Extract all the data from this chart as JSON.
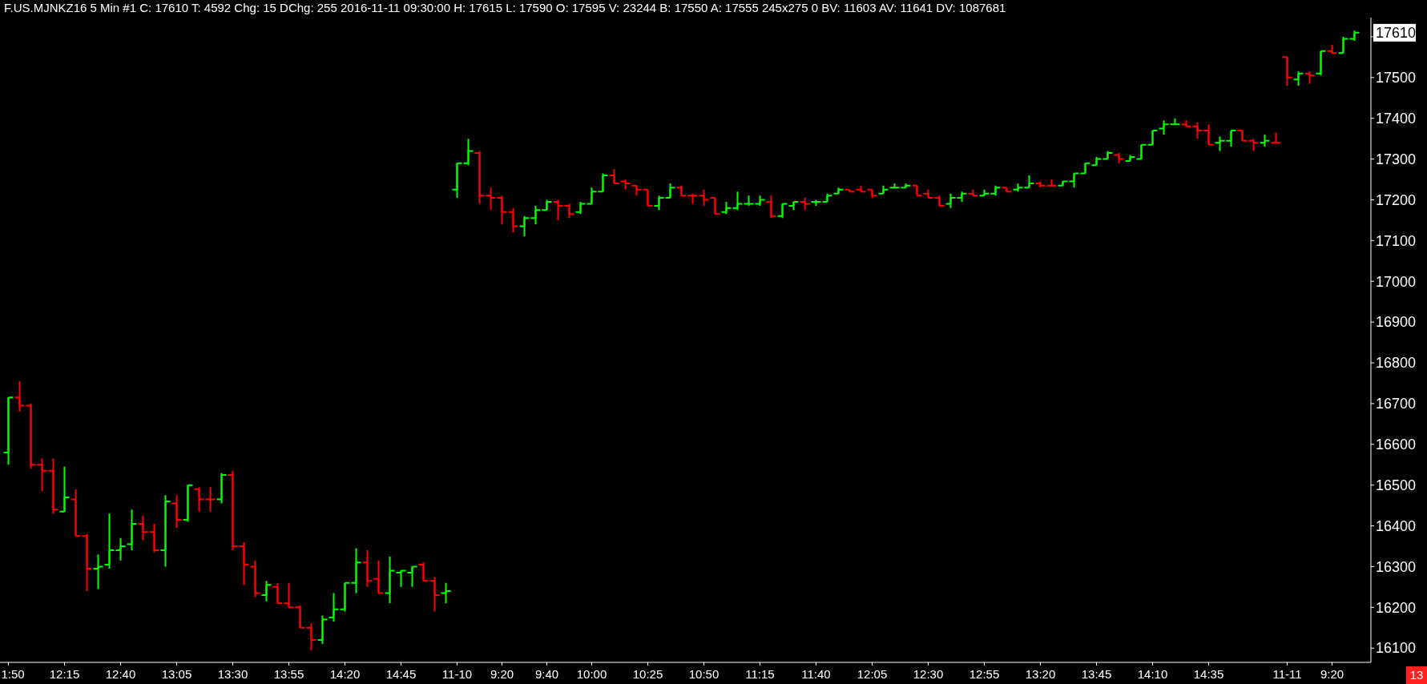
{
  "chart_data": {
    "type": "candlestick",
    "title": "F.US.MJNKZ16  5 Min  #1 C: 17610 T: 4592 Chg: 15 DChg: 255 2016-11-11 09:30:00 H: 17615 L: 17590 O: 17595 V: 23244 B: 17550 A: 17555 245x275 0 BV: 11603 AV: 11641 DV: 1087681",
    "categories": [
      "1:50",
      null,
      null,
      null,
      null,
      "12:15",
      null,
      null,
      null,
      null,
      "12:40",
      null,
      null,
      null,
      null,
      "13:05",
      null,
      null,
      null,
      null,
      "13:30",
      null,
      null,
      null,
      null,
      "13:55",
      null,
      null,
      null,
      null,
      "14:20",
      null,
      null,
      null,
      null,
      "14:45",
      null,
      null,
      null,
      null,
      "11-10",
      null,
      null,
      null,
      "9:20",
      null,
      null,
      null,
      "9:40",
      null,
      null,
      null,
      "10:00",
      null,
      null,
      null,
      null,
      "10:25",
      null,
      null,
      null,
      null,
      "10:50",
      null,
      null,
      null,
      null,
      "11:15",
      null,
      null,
      null,
      null,
      "11:40",
      null,
      null,
      null,
      null,
      "12:05",
      null,
      null,
      null,
      null,
      "12:30",
      null,
      null,
      null,
      null,
      "12:55",
      null,
      null,
      null,
      null,
      "13:20",
      null,
      null,
      null,
      null,
      "13:45",
      null,
      null,
      null,
      null,
      "14:10",
      null,
      null,
      null,
      null,
      "14:35",
      null,
      null,
      null,
      null,
      null,
      null,
      "11-11",
      null,
      null,
      null,
      "9:20",
      null,
      null
    ],
    "ohlc": [
      [
        16580,
        16715,
        16550,
        16715
      ],
      [
        16715,
        16755,
        16680,
        16695
      ],
      [
        16695,
        16700,
        16540,
        16550
      ],
      [
        16550,
        16565,
        16485,
        16535
      ],
      [
        16535,
        16565,
        16430,
        16440
      ],
      [
        16435,
        16545,
        16435,
        16470
      ],
      [
        16465,
        16490,
        16375,
        16375
      ],
      [
        16375,
        16380,
        16240,
        16295
      ],
      [
        16295,
        16330,
        16245,
        16300
      ],
      [
        16305,
        16430,
        16295,
        16340
      ],
      [
        16340,
        16370,
        16315,
        16350
      ],
      [
        16355,
        16440,
        16340,
        16405
      ],
      [
        16405,
        16425,
        16365,
        16385
      ],
      [
        16385,
        16405,
        16335,
        16340
      ],
      [
        16340,
        16475,
        16300,
        16460
      ],
      [
        16455,
        16475,
        16395,
        16415
      ],
      [
        16415,
        16500,
        16410,
        16500
      ],
      [
        16490,
        16495,
        16435,
        16465
      ],
      [
        16465,
        16495,
        16435,
        16465
      ],
      [
        16465,
        16530,
        16455,
        16525
      ],
      [
        16525,
        16535,
        16340,
        16350
      ],
      [
        16350,
        16360,
        16255,
        16305
      ],
      [
        16300,
        16315,
        16225,
        16235
      ],
      [
        16230,
        16265,
        16215,
        16255
      ],
      [
        16250,
        16260,
        16210,
        16210
      ],
      [
        16210,
        16260,
        16200,
        16200
      ],
      [
        16200,
        16205,
        16150,
        16150
      ],
      [
        16150,
        16160,
        16095,
        16120
      ],
      [
        16120,
        16180,
        16110,
        16170
      ],
      [
        16175,
        16235,
        16165,
        16195
      ],
      [
        16195,
        16260,
        16190,
        16260
      ],
      [
        16260,
        16345,
        16235,
        16310
      ],
      [
        16310,
        16340,
        16250,
        16265
      ],
      [
        16270,
        16315,
        16235,
        16235
      ],
      [
        16235,
        16325,
        16210,
        16290
      ],
      [
        16285,
        16290,
        16250,
        16290
      ],
      [
        16285,
        16300,
        16250,
        16300
      ],
      [
        16305,
        16310,
        16265,
        16265
      ],
      [
        16265,
        16275,
        16190,
        16230
      ],
      [
        16235,
        16260,
        16210,
        16240
      ],
      [
        17225,
        17290,
        17205,
        17290
      ],
      [
        17290,
        17350,
        17285,
        17320
      ],
      [
        17315,
        17320,
        17190,
        17210
      ],
      [
        17210,
        17230,
        17175,
        17205
      ],
      [
        17205,
        17210,
        17140,
        17170
      ],
      [
        17170,
        17180,
        17120,
        17135
      ],
      [
        17135,
        17160,
        17110,
        17155
      ],
      [
        17155,
        17185,
        17140,
        17175
      ],
      [
        17175,
        17200,
        17175,
        17195
      ],
      [
        17195,
        17200,
        17150,
        17185
      ],
      [
        17185,
        17190,
        17155,
        17165
      ],
      [
        17170,
        17195,
        17165,
        17190
      ],
      [
        17190,
        17230,
        17190,
        17220
      ],
      [
        17220,
        17265,
        17220,
        17260
      ],
      [
        17260,
        17275,
        17240,
        17240
      ],
      [
        17245,
        17250,
        17225,
        17240
      ],
      [
        17235,
        17235,
        17210,
        17225
      ],
      [
        17225,
        17225,
        17185,
        17185
      ],
      [
        17185,
        17210,
        17175,
        17205
      ],
      [
        17205,
        17240,
        17205,
        17230
      ],
      [
        17230,
        17235,
        17210,
        17210
      ],
      [
        17210,
        17215,
        17190,
        17210
      ],
      [
        17210,
        17225,
        17185,
        17200
      ],
      [
        17205,
        17205,
        17165,
        17165
      ],
      [
        17170,
        17195,
        17165,
        17180
      ],
      [
        17180,
        17220,
        17175,
        17190
      ],
      [
        17190,
        17210,
        17185,
        17190
      ],
      [
        17190,
        17210,
        17185,
        17200
      ],
      [
        17195,
        17210,
        17155,
        17160
      ],
      [
        17160,
        17190,
        17155,
        17190
      ],
      [
        17185,
        17195,
        17175,
        17195
      ],
      [
        17195,
        17205,
        17175,
        17190
      ],
      [
        17195,
        17200,
        17185,
        17195
      ],
      [
        17195,
        17215,
        17195,
        17210
      ],
      [
        17215,
        17230,
        17215,
        17225
      ],
      [
        17225,
        17225,
        17220,
        17220
      ],
      [
        17225,
        17235,
        17220,
        17220
      ],
      [
        17225,
        17225,
        17205,
        17210
      ],
      [
        17215,
        17235,
        17215,
        17225
      ],
      [
        17230,
        17240,
        17230,
        17230
      ],
      [
        17230,
        17240,
        17230,
        17235
      ],
      [
        17235,
        17235,
        17210,
        17210
      ],
      [
        17215,
        17225,
        17205,
        17205
      ],
      [
        17205,
        17210,
        17185,
        17185
      ],
      [
        17190,
        17215,
        17180,
        17205
      ],
      [
        17205,
        17220,
        17195,
        17215
      ],
      [
        17215,
        17225,
        17210,
        17210
      ],
      [
        17210,
        17225,
        17210,
        17215
      ],
      [
        17215,
        17235,
        17210,
        17230
      ],
      [
        17230,
        17230,
        17220,
        17220
      ],
      [
        17225,
        17240,
        17220,
        17230
      ],
      [
        17230,
        17260,
        17230,
        17240
      ],
      [
        17240,
        17245,
        17230,
        17235
      ],
      [
        17235,
        17250,
        17235,
        17235
      ],
      [
        17235,
        17245,
        17235,
        17245
      ],
      [
        17245,
        17265,
        17230,
        17265
      ],
      [
        17265,
        17290,
        17265,
        17290
      ],
      [
        17285,
        17305,
        17285,
        17300
      ],
      [
        17300,
        17320,
        17300,
        17315
      ],
      [
        17310,
        17315,
        17290,
        17300
      ],
      [
        17295,
        17310,
        17295,
        17305
      ],
      [
        17300,
        17335,
        17300,
        17335
      ],
      [
        17335,
        17370,
        17335,
        17370
      ],
      [
        17375,
        17395,
        17360,
        17385
      ],
      [
        17385,
        17400,
        17385,
        17385
      ],
      [
        17385,
        17395,
        17380,
        17380
      ],
      [
        17380,
        17390,
        17350,
        17370
      ],
      [
        17370,
        17385,
        17335,
        17335
      ],
      [
        17340,
        17355,
        17320,
        17345
      ],
      [
        17345,
        17370,
        17330,
        17370
      ],
      [
        17370,
        17370,
        17345,
        17345
      ],
      [
        17345,
        17350,
        17320,
        17340
      ],
      [
        17340,
        17360,
        17330,
        17345
      ],
      [
        17340,
        17365,
        17340,
        17340
      ],
      [
        17550,
        17550,
        17480,
        17500
      ],
      [
        17495,
        17515,
        17480,
        17510
      ],
      [
        17510,
        17515,
        17485,
        17505
      ],
      [
        17510,
        17565,
        17505,
        17565
      ],
      [
        17565,
        17580,
        17560,
        17560
      ],
      [
        17560,
        17600,
        17560,
        17595
      ],
      [
        17595,
        17615,
        17590,
        17610
      ]
    ],
    "colors": [
      "#00ff00",
      "#ff0000",
      "#ff0000",
      "#ff0000",
      "#ff0000",
      "#00ff00",
      "#ff0000",
      "#ff0000",
      "#00ff00",
      "#00ff00",
      "#00ff00",
      "#00ff00",
      "#ff0000",
      "#ff0000",
      "#00ff00",
      "#ff0000",
      "#00ff00",
      "#ff0000",
      "#ff0000",
      "#00ff00",
      "#ff0000",
      "#ff0000",
      "#ff0000",
      "#00ff00",
      "#ff0000",
      "#ff0000",
      "#ff0000",
      "#ff0000",
      "#00ff00",
      "#00ff00",
      "#00ff00",
      "#00ff00",
      "#ff0000",
      "#ff0000",
      "#00ff00",
      "#00ff00",
      "#00ff00",
      "#ff0000",
      "#ff0000",
      "#00ff00",
      "#00ff00",
      "#00ff00",
      "#ff0000",
      "#ff0000",
      "#ff0000",
      "#ff0000",
      "#00ff00",
      "#00ff00",
      "#00ff00",
      "#ff0000",
      "#ff0000",
      "#00ff00",
      "#00ff00",
      "#00ff00",
      "#ff0000",
      "#ff0000",
      "#ff0000",
      "#ff0000",
      "#00ff00",
      "#00ff00",
      "#ff0000",
      "#ff0000",
      "#ff0000",
      "#ff0000",
      "#00ff00",
      "#00ff00",
      "#00ff00",
      "#00ff00",
      "#ff0000",
      "#00ff00",
      "#00ff00",
      "#ff0000",
      "#00ff00",
      "#00ff00",
      "#00ff00",
      "#ff0000",
      "#ff0000",
      "#ff0000",
      "#00ff00",
      "#00ff00",
      "#00ff00",
      "#ff0000",
      "#ff0000",
      "#ff0000",
      "#00ff00",
      "#00ff00",
      "#ff0000",
      "#00ff00",
      "#00ff00",
      "#ff0000",
      "#00ff00",
      "#00ff00",
      "#ff0000",
      "#ff0000",
      "#00ff00",
      "#00ff00",
      "#00ff00",
      "#00ff00",
      "#00ff00",
      "#ff0000",
      "#00ff00",
      "#00ff00",
      "#00ff00",
      "#00ff00",
      "#00ff00",
      "#ff0000",
      "#ff0000",
      "#ff0000",
      "#00ff00",
      "#00ff00",
      "#ff0000",
      "#ff0000",
      "#00ff00",
      "#ff0000",
      "#ff0000",
      "#00ff00",
      "#ff0000",
      "#00ff00",
      "#ff0000",
      "#00ff00",
      "#00ff00"
    ],
    "ylim": [
      16065,
      17647
    ],
    "yticks": [
      16100,
      16200,
      16300,
      16400,
      16500,
      16600,
      16700,
      16800,
      16900,
      17000,
      17100,
      17200,
      17300,
      17400,
      17500,
      {
        "value": 17600,
        "label": null
      }
    ],
    "grid": false,
    "annotations": [
      "17610",
      "13"
    ]
  }
}
